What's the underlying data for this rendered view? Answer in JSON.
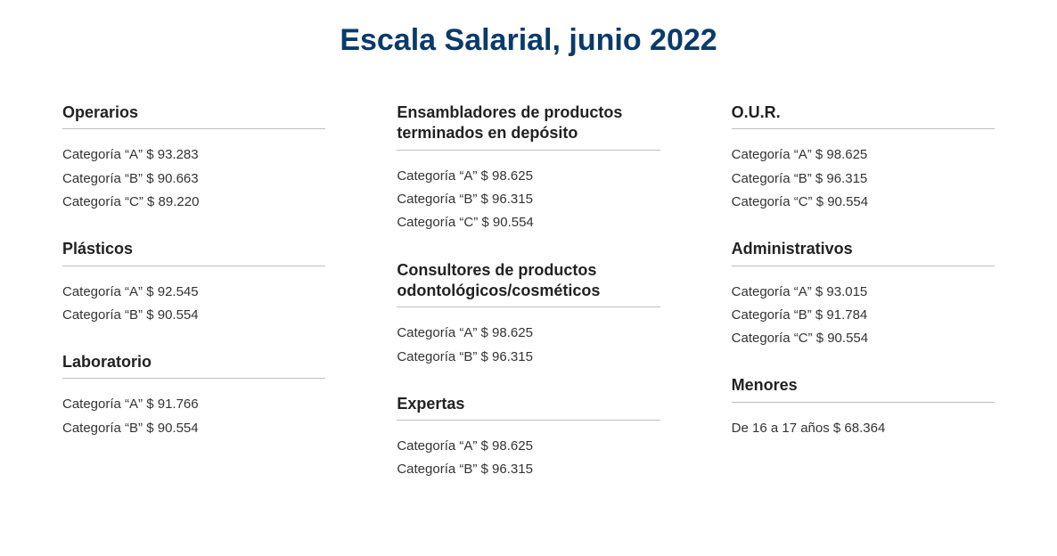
{
  "title": "Escala Salarial, junio 2022",
  "title_color": "#0a3a6b",
  "body_text_color": "#333333",
  "rule_color": "#bfbfbf",
  "columns": [
    [
      {
        "title": "Operarios",
        "rows": [
          {
            "label": "Categoría “A”",
            "value": "$ 93.283"
          },
          {
            "label": "Categoría “B”",
            "value": "$ 90.663"
          },
          {
            "label": "Categoría “C”",
            "value": "$ 89.220"
          }
        ]
      },
      {
        "title": "Plásticos",
        "rows": [
          {
            "label": "Categoría “A”",
            "value": "$ 92.545"
          },
          {
            "label": "Categoría “B”",
            "value": "$ 90.554"
          }
        ]
      },
      {
        "title": "Laboratorio",
        "rows": [
          {
            "label": "Categoría “A”",
            "value": "$ 91.766"
          },
          {
            "label": "Categoría “B”",
            "value": "$ 90.554"
          }
        ]
      }
    ],
    [
      {
        "title": "Ensambladores de productos terminados en depósito",
        "rows": [
          {
            "label": "Categoría “A”",
            "value": "$ 98.625"
          },
          {
            "label": "Categoría “B”",
            "value": "$ 96.315"
          },
          {
            "label": "Categoría “C”",
            "value": "$ 90.554"
          }
        ]
      },
      {
        "title": "Consultores de productos odontológicos/cosméticos",
        "rows": [
          {
            "label": "Categoría “A”",
            "value": "$ 98.625"
          },
          {
            "label": "Categoría “B”",
            "value": "$ 96.315"
          }
        ]
      },
      {
        "title": "Expertas",
        "rows": [
          {
            "label": "Categoría “A”",
            "value": "$ 98.625"
          },
          {
            "label": "Categoría “B”",
            "value": "$ 96.315"
          }
        ]
      }
    ],
    [
      {
        "title": "O.U.R.",
        "rows": [
          {
            "label": "Categoría “A”",
            "value": "$ 98.625"
          },
          {
            "label": "Categoría “B”",
            "value": "$ 96.315"
          },
          {
            "label": "Categoría “C”",
            "value": "$ 90.554"
          }
        ]
      },
      {
        "title": "Administrativos",
        "rows": [
          {
            "label": "Categoría “A”",
            "value": "$ 93.015"
          },
          {
            "label": "Categoría “B”",
            "value": "$ 91.784"
          },
          {
            "label": "Categoría “C”",
            "value": "$ 90.554"
          }
        ]
      },
      {
        "title": "Menores",
        "rows": [
          {
            "label": "De 16 a 17 años",
            "value": "$ 68.364"
          }
        ]
      }
    ]
  ]
}
